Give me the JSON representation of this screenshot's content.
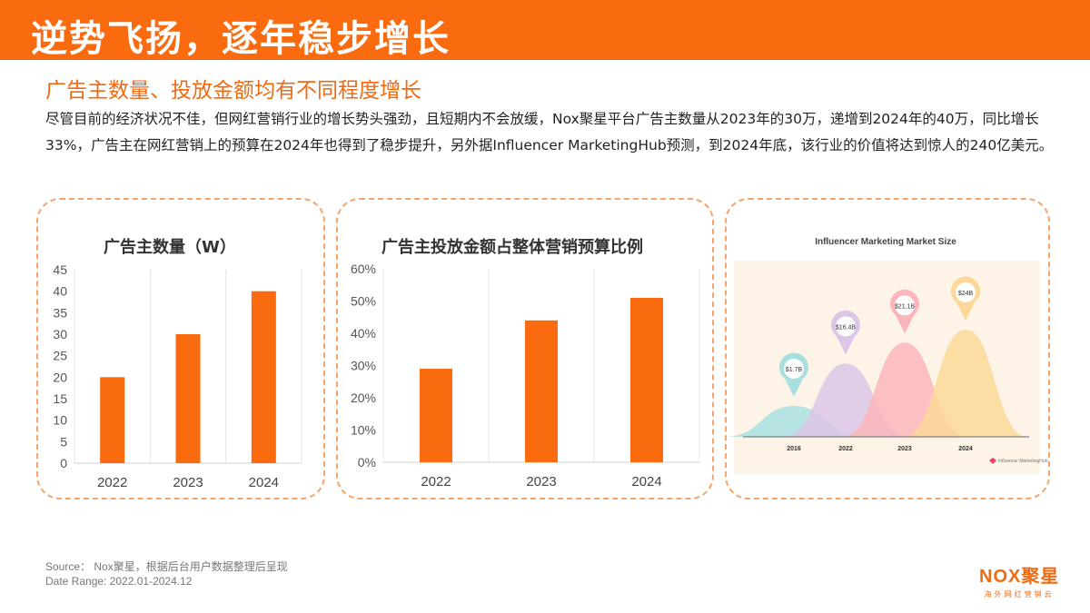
{
  "header": {
    "title": "逆势飞扬，逐年稳步增长"
  },
  "subtitle": "广告主数量、投放金额均有不同程度增长",
  "paragraph": "尽管目前的经济状况不佳，但网红营销行业的增长势头强劲，且短期内不会放缓，Nox聚星平台广告主数量从2023年的30万，递增到2024年的40万，同比增长33%，广告主在网红营销上的预算在2024年也得到了稳步提升，另外据Influencer MarketingHub预测，到2024年底，该行业的价值将达到惊人的240亿美元。",
  "chart_data": [
    {
      "type": "bar",
      "title": "广告主数量（W）",
      "categories": [
        "2022",
        "2023",
        "2024"
      ],
      "values": [
        20,
        30,
        40
      ],
      "ylim": [
        0,
        45
      ],
      "yticks": [
        "0",
        "5",
        "10",
        "15",
        "20",
        "25",
        "30",
        "35",
        "40",
        "45"
      ],
      "xlabel": "",
      "ylabel": "",
      "color": "#f96b0e"
    },
    {
      "type": "bar",
      "title": "广告主投放金额占整体营销预算比例",
      "categories": [
        "2022",
        "2023",
        "2024"
      ],
      "values": [
        29,
        44,
        51
      ],
      "ylim": [
        0,
        60
      ],
      "yticks": [
        "0%",
        "10%",
        "20%",
        "30%",
        "40%",
        "50%",
        "60%"
      ],
      "xlabel": "",
      "ylabel": "",
      "color": "#f96b0e"
    },
    {
      "type": "area",
      "title": "Influencer Marketing Market Size",
      "categories": [
        "2016",
        "2022",
        "2023",
        "2024"
      ],
      "values": [
        1.7,
        16.4,
        21.1,
        24
      ],
      "labels": [
        "$1.7B",
        "$16.4B",
        "$21.1B",
        "$24B"
      ],
      "colors": [
        "#a8e0e0",
        "#dcc6e8",
        "#fbb6bb",
        "#fcd898"
      ],
      "source_logo": "Influencer MarketingHub"
    }
  ],
  "footer": {
    "source": "Source： Nox聚星，根据后台用户数据整理后呈现",
    "date_range": "Date Range:  2022.01-2024.12"
  },
  "logo": {
    "name": "NOX聚星",
    "tagline": "海外网红营销云"
  }
}
